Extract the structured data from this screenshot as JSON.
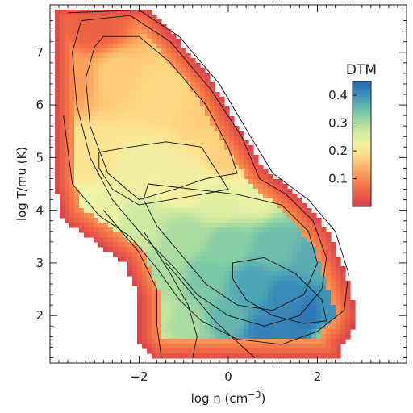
{
  "chart_data": {
    "type": "heatmap",
    "title": "",
    "xlabel": "log n (cm",
    "xlabel_sup": "−3",
    "xlabel_suffix": ")",
    "ylabel": "log T/mu (K)",
    "xlim": [
      -4.0,
      4.0
    ],
    "ylim": [
      1.1,
      7.9
    ],
    "xticks": [
      -2,
      0,
      2
    ],
    "xtick_labels": [
      "−2",
      "0",
      "2"
    ],
    "yticks": [
      2,
      3,
      4,
      5,
      6,
      7
    ],
    "ytick_labels": [
      "2",
      "3",
      "4",
      "5",
      "6",
      "7"
    ],
    "colorbar": {
      "title": "DTM",
      "range": [
        0.0,
        0.45
      ],
      "ticks": [
        0.1,
        0.2,
        0.3,
        0.4
      ],
      "tick_labels": [
        "0.1",
        "0.2",
        "0.3",
        "0.4"
      ],
      "colormap": "Spectral"
    },
    "region_points": [
      [
        -3.9,
        7.85
      ],
      [
        -1.8,
        7.85
      ],
      [
        -1.4,
        7.5
      ],
      [
        -0.4,
        6.5
      ],
      [
        0.2,
        5.6
      ],
      [
        0.8,
        4.8
      ],
      [
        1.3,
        4.45
      ],
      [
        1.7,
        4.15
      ],
      [
        2.3,
        3.55
      ],
      [
        2.7,
        2.6
      ],
      [
        2.9,
        2.0
      ],
      [
        2.7,
        1.6
      ],
      [
        2.5,
        1.45
      ],
      [
        2.55,
        1.15
      ],
      [
        0.8,
        1.15
      ],
      [
        -0.5,
        1.15
      ],
      [
        -1.6,
        1.15
      ],
      [
        -2.0,
        1.5
      ],
      [
        -2.0,
        2.3
      ],
      [
        -2.3,
        3.0
      ],
      [
        -3.0,
        3.4
      ],
      [
        -3.7,
        3.8
      ],
      [
        -3.9,
        4.5
      ]
    ],
    "dtm_field_points": [
      [
        -3.0,
        7.5,
        0.05
      ],
      [
        -3.5,
        6.5,
        0.12
      ],
      [
        -2.5,
        6.5,
        0.17
      ],
      [
        -1.5,
        6.2,
        0.18
      ],
      [
        -0.6,
        5.8,
        0.17
      ],
      [
        0.0,
        5.0,
        0.17
      ],
      [
        -3.0,
        5.0,
        0.2
      ],
      [
        -2.0,
        4.8,
        0.22
      ],
      [
        -1.0,
        4.5,
        0.22
      ],
      [
        -0.2,
        4.2,
        0.25
      ],
      [
        0.6,
        4.3,
        0.24
      ],
      [
        -2.8,
        4.0,
        0.24
      ],
      [
        -2.0,
        3.7,
        0.27
      ],
      [
        -1.0,
        3.5,
        0.3
      ],
      [
        0.0,
        3.3,
        0.33
      ],
      [
        1.0,
        3.3,
        0.35
      ],
      [
        2.0,
        3.0,
        0.37
      ],
      [
        -1.5,
        2.8,
        0.3
      ],
      [
        -0.5,
        2.7,
        0.34
      ],
      [
        0.5,
        2.6,
        0.38
      ],
      [
        1.3,
        2.3,
        0.41
      ],
      [
        1.8,
        2.0,
        0.43
      ],
      [
        2.3,
        2.1,
        0.4
      ],
      [
        -1.6,
        2.0,
        0.28
      ],
      [
        -1.0,
        1.8,
        0.3
      ],
      [
        0.0,
        1.9,
        0.36
      ],
      [
        0.8,
        1.6,
        0.42
      ],
      [
        1.5,
        1.5,
        0.42
      ],
      [
        2.2,
        1.5,
        0.33
      ],
      [
        -1.4,
        1.3,
        0.27
      ],
      [
        -0.6,
        1.3,
        0.32
      ],
      [
        0.5,
        1.3,
        0.39
      ]
    ],
    "contours": [
      [
        [
          -2.8,
          7.3
        ],
        [
          -2.0,
          7.3
        ],
        [
          -1.3,
          6.8
        ],
        [
          -0.5,
          6.0
        ],
        [
          0.0,
          5.2
        ],
        [
          0.2,
          4.7
        ],
        [
          -0.5,
          4.6
        ],
        [
          -1.2,
          4.4
        ],
        [
          -2.0,
          4.2
        ],
        [
          -2.7,
          4.7
        ],
        [
          -3.1,
          5.6
        ],
        [
          -3.2,
          6.5
        ],
        [
          -3.0,
          7.1
        ]
      ],
      [
        [
          -3.3,
          7.6
        ],
        [
          -2.2,
          7.7
        ],
        [
          -1.3,
          7.2
        ],
        [
          -0.4,
          6.3
        ],
        [
          0.3,
          5.4
        ],
        [
          0.7,
          4.6
        ],
        [
          1.3,
          4.3
        ],
        [
          1.9,
          3.8
        ],
        [
          2.2,
          3.1
        ],
        [
          2.1,
          2.5
        ],
        [
          1.6,
          2.0
        ],
        [
          0.8,
          1.8
        ],
        [
          0.0,
          2.0
        ],
        [
          -0.7,
          2.4
        ],
        [
          -1.2,
          2.9
        ],
        [
          -1.9,
          3.5
        ],
        [
          -2.6,
          4.2
        ],
        [
          -3.1,
          5.0
        ],
        [
          -3.4,
          6.0
        ],
        [
          -3.5,
          7.0
        ]
      ],
      [
        [
          -3.6,
          7.75
        ],
        [
          -2.0,
          7.8
        ],
        [
          -1.1,
          7.3
        ],
        [
          -0.2,
          6.4
        ],
        [
          0.5,
          5.4
        ],
        [
          1.0,
          4.7
        ],
        [
          1.8,
          4.2
        ],
        [
          2.4,
          3.6
        ],
        [
          2.7,
          2.8
        ],
        [
          2.6,
          2.1
        ],
        [
          2.0,
          1.7
        ],
        [
          1.2,
          1.45
        ],
        [
          0.2,
          1.55
        ],
        [
          -0.6,
          1.9
        ],
        [
          -1.1,
          2.3
        ],
        [
          -1.6,
          2.9
        ],
        [
          -2.2,
          3.5
        ],
        [
          -2.9,
          3.9
        ],
        [
          -3.5,
          4.5
        ],
        [
          -3.7,
          5.8
        ]
      ],
      [
        [
          -2.9,
          5.1
        ],
        [
          -2.2,
          5.2
        ],
        [
          -1.4,
          5.3
        ],
        [
          -0.6,
          5.2
        ],
        [
          -0.3,
          4.8
        ],
        [
          0.0,
          4.4
        ],
        [
          -0.6,
          4.3
        ],
        [
          -1.3,
          4.2
        ],
        [
          -2.0,
          4.1
        ],
        [
          -2.6,
          4.4
        ],
        [
          -2.9,
          4.8
        ]
      ],
      [
        [
          -1.8,
          4.5
        ],
        [
          -0.8,
          4.4
        ],
        [
          0.2,
          4.3
        ],
        [
          1.2,
          4.1
        ],
        [
          1.8,
          3.6
        ],
        [
          2.0,
          3.0
        ],
        [
          1.7,
          2.4
        ],
        [
          1.0,
          2.1
        ],
        [
          0.2,
          2.2
        ],
        [
          -0.5,
          2.6
        ],
        [
          -1.0,
          3.1
        ],
        [
          -1.6,
          3.7
        ],
        [
          -1.9,
          4.2
        ]
      ],
      [
        [
          0.1,
          3.0
        ],
        [
          0.8,
          3.1
        ],
        [
          1.5,
          2.8
        ],
        [
          2.1,
          2.3
        ],
        [
          2.2,
          1.9
        ],
        [
          1.7,
          1.85
        ],
        [
          1.0,
          2.0
        ],
        [
          0.4,
          2.3
        ],
        [
          0.1,
          2.7
        ]
      ],
      [
        [
          -1.4,
          3.0
        ],
        [
          -0.8,
          2.4
        ],
        [
          -0.3,
          1.9
        ],
        [
          0.2,
          1.5
        ],
        [
          0.6,
          1.2
        ]
      ],
      [
        [
          -1.9,
          3.6
        ],
        [
          -1.3,
          2.8
        ],
        [
          -0.9,
          2.2
        ],
        [
          -0.7,
          1.6
        ],
        [
          -0.8,
          1.2
        ]
      ],
      [
        [
          -2.8,
          4.0
        ],
        [
          -2.0,
          3.2
        ],
        [
          -1.6,
          2.5
        ],
        [
          -1.6,
          1.8
        ],
        [
          -1.5,
          1.2
        ]
      ]
    ]
  }
}
